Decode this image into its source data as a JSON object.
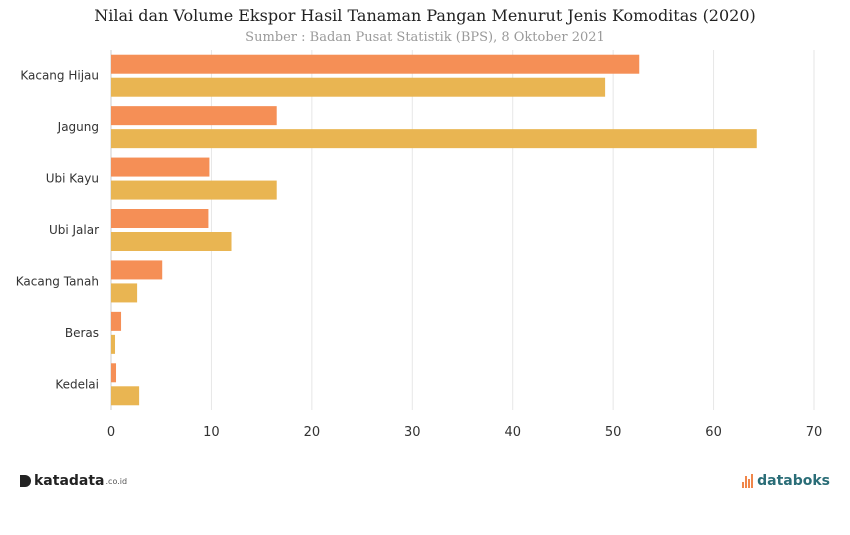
{
  "chart_data": {
    "type": "bar",
    "orientation": "horizontal",
    "title": "Nilai dan Volume Ekspor Hasil Tanaman Pangan Menurut Jenis Komoditas (2020)",
    "subtitle": "Sumber : Badan Pusat Statistik (BPS), 8 Oktober 2021",
    "categories": [
      "Kacang Hijau",
      "Jagung",
      "Ubi Kayu",
      "Ubi Jalar",
      "Kacang Tanah",
      "Beras",
      "Kedelai"
    ],
    "series": [
      {
        "color": "#f58f56",
        "values": [
          52.6,
          16.5,
          9.8,
          9.7,
          5.1,
          1.0,
          0.5
        ]
      },
      {
        "color": "#e9b552",
        "values": [
          49.2,
          64.3,
          16.5,
          12.0,
          2.6,
          0.4,
          2.8
        ]
      }
    ],
    "xlim": [
      0,
      70
    ],
    "xticks": [
      0,
      10,
      20,
      30,
      40,
      50,
      60,
      70
    ],
    "grid": true
  },
  "branding": {
    "left_logo": "katadata",
    "left_logo_suffix": ".co.id",
    "right_logo": "databoks"
  }
}
